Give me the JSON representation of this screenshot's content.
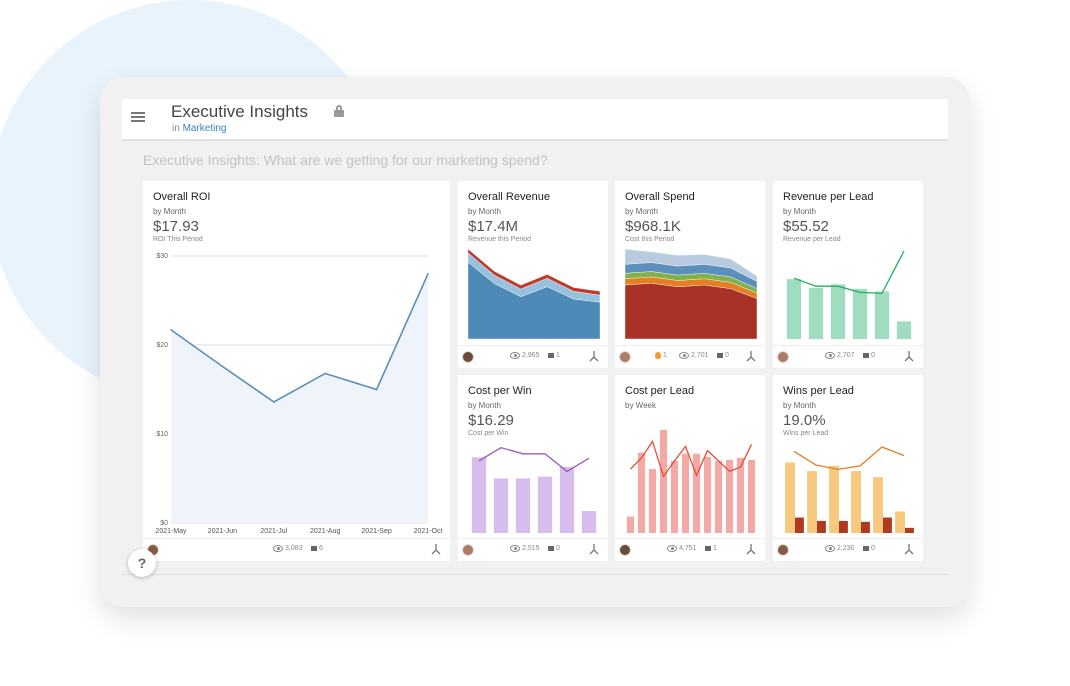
{
  "header": {
    "title": "Executive Insights",
    "breadcrumb_prefix": "in",
    "breadcrumb_link": "Marketing"
  },
  "subtitle": "Executive Insights: What are we getting for our marketing spend?",
  "help_label": "?",
  "cards": {
    "roi": {
      "title": "Overall ROI",
      "by": "by Month",
      "value": "$17.93",
      "sub": "ROI This Period",
      "views": "3,083",
      "comments": "6"
    },
    "revenue": {
      "title": "Overall Revenue",
      "by": "by Month",
      "value": "$17.4M",
      "sub": "Revenue this Period",
      "views": "2,965",
      "comments": "1"
    },
    "spend": {
      "title": "Overall Spend",
      "by": "by Month",
      "value": "$968.1K",
      "sub": "Cost this Period",
      "likes": "1",
      "views": "2,701",
      "comments": "0"
    },
    "revlead": {
      "title": "Revenue per Lead",
      "by": "by Month",
      "value": "$55.52",
      "sub": "Revenue per Lead",
      "views": "2,707",
      "comments": "0"
    },
    "costwin": {
      "title": "Cost per Win",
      "by": "by Month",
      "value": "$16.29",
      "sub": "Cost per Win",
      "views": "2,515",
      "comments": "0"
    },
    "costlead": {
      "title": "Cost per Lead",
      "by": "by Week",
      "views": "4,751",
      "comments": "1"
    },
    "winslead": {
      "title": "Wins per Lead",
      "by": "by Month",
      "value": "19.0%",
      "sub": "Wins per Lead",
      "views": "2,230",
      "comments": "0"
    }
  },
  "chart_data": [
    {
      "id": "roi",
      "type": "line",
      "title": "Overall ROI",
      "x": [
        "2021-May",
        "2021-Jun",
        "2021-Jul",
        "2021-Aug",
        "2021-Sep",
        "2021-Oct"
      ],
      "y_ticks": [
        "$0",
        "$10",
        "$20",
        "$30"
      ],
      "ylim": [
        0,
        30
      ],
      "values": [
        21.7,
        17.6,
        13.6,
        16.8,
        15.0,
        28.0
      ],
      "color": "#5b8fb9",
      "grid": true
    },
    {
      "id": "revenue",
      "type": "area",
      "title": "Overall Revenue",
      "series": [
        {
          "name": "",
          "values": [
            1.0,
            0.72,
            0.55,
            0.68,
            0.52,
            0.48
          ],
          "color": "#4e8ab8"
        },
        {
          "name": "",
          "values": [
            0.12,
            0.11,
            0.1,
            0.11,
            0.1,
            0.09
          ],
          "color": "#98c1de"
        },
        {
          "name": "",
          "values": [
            0.05,
            0.05,
            0.05,
            0.05,
            0.05,
            0.05
          ],
          "color": "#c0392b"
        }
      ]
    },
    {
      "id": "spend",
      "type": "area",
      "title": "Overall Spend",
      "series": [
        {
          "name": "",
          "values": [
            0.6,
            0.62,
            0.58,
            0.6,
            0.56,
            0.45
          ],
          "color": "#a93226"
        },
        {
          "name": "",
          "values": [
            0.07,
            0.07,
            0.07,
            0.07,
            0.07,
            0.06
          ],
          "color": "#e67e22"
        },
        {
          "name": "",
          "values": [
            0.06,
            0.06,
            0.06,
            0.06,
            0.06,
            0.05
          ],
          "color": "#7fb24a"
        },
        {
          "name": "",
          "values": [
            0.1,
            0.1,
            0.1,
            0.1,
            0.1,
            0.08
          ],
          "color": "#5d8fbd"
        },
        {
          "name": "",
          "values": [
            0.17,
            0.12,
            0.12,
            0.11,
            0.1,
            0.06
          ],
          "color": "#b9cbe0"
        }
      ]
    },
    {
      "id": "revlead",
      "type": "bar+line",
      "title": "Revenue per Lead",
      "bar_values": [
        0.68,
        0.58,
        0.62,
        0.57,
        0.54,
        0.2
      ],
      "bar_color": "#9fdcc0",
      "line_values": [
        0.69,
        0.6,
        0.6,
        0.53,
        0.52,
        1.0
      ],
      "line_color": "#27ae60"
    },
    {
      "id": "costwin",
      "type": "bar+line",
      "title": "Cost per Win",
      "bar_values": [
        0.86,
        0.62,
        0.62,
        0.64,
        0.75,
        0.25
      ],
      "bar_color": "#d7bdee",
      "line_values": [
        0.82,
        0.97,
        0.9,
        0.9,
        0.7,
        0.85
      ],
      "line_color": "#9b59b6"
    },
    {
      "id": "costlead",
      "type": "bar+line",
      "title": "Cost per Lead",
      "bar_values": [
        0.16,
        0.78,
        0.62,
        1.0,
        0.7,
        0.77,
        0.77,
        0.74,
        0.7,
        0.71,
        0.73,
        0.71
      ],
      "bar_color": "#f3a9a6",
      "line_values": [
        0.62,
        0.73,
        0.89,
        0.55,
        0.7,
        0.84,
        0.56,
        0.8,
        0.7,
        0.6,
        0.64,
        0.86
      ],
      "line_color": "#e74c3c"
    },
    {
      "id": "winslead",
      "type": "bar+line",
      "title": "Wins per Lead",
      "bar_values": [
        0.82,
        0.72,
        0.78,
        0.72,
        0.65,
        0.25
      ],
      "bar_color": "#f7c97e",
      "bar2_values": [
        0.18,
        0.14,
        0.14,
        0.13,
        0.18,
        0.06
      ],
      "bar2_color": "#b03a1e",
      "line_values": [
        0.95,
        0.79,
        0.74,
        0.78,
        1.0,
        0.9
      ],
      "line_color": "#e67e22"
    }
  ]
}
